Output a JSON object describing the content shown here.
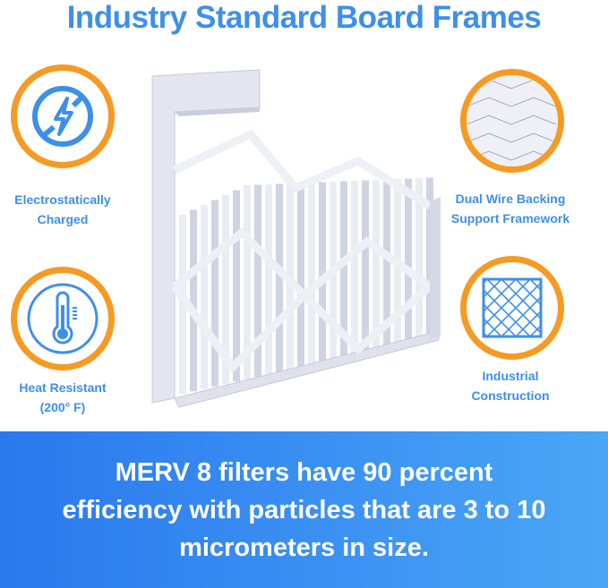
{
  "title": "Industry Standard Board Frames",
  "features": [
    {
      "label_line1": "Electrostatically",
      "label_line2": "Charged",
      "icon": "no-lightning-icon"
    },
    {
      "label_line1": "Heat Resistant",
      "label_line2": "(200° F)",
      "icon": "thermometer-icon"
    },
    {
      "label_line1": "Dual Wire Backing",
      "label_line2": "Support Framework",
      "icon": "wire-mesh-photo"
    },
    {
      "label_line1": "Industrial",
      "label_line2": "Construction",
      "icon": "grid-frame-icon"
    }
  ],
  "banner": {
    "text": "MERV 8 filters have 90 percent efficiency with particles that are 3 to 10 micrometers in size."
  },
  "colors": {
    "accent_blue": "#3d8fe9",
    "ring_orange": "#f59a23",
    "banner_start": "#2a78ee",
    "banner_end": "#4aa6f6"
  }
}
